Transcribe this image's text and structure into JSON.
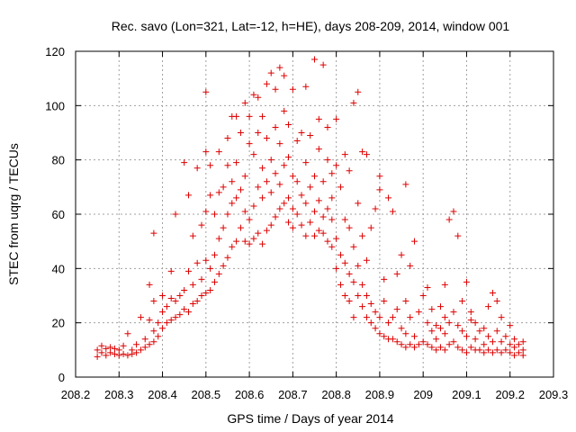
{
  "chart_data": {
    "type": "scatter",
    "title": "Rec. savo (Lon=321, Lat=-12, h=HE), days 208-209, 2014, window 001",
    "xlabel": "GPS time / Days of year 2014",
    "ylabel": "STEC from uqrg / TECUs",
    "xlim": [
      208.2,
      209.3
    ],
    "ylim": [
      0,
      120
    ],
    "xticks": [
      "208.2",
      "208.3",
      "208.4",
      "208.5",
      "208.6",
      "208.7",
      "208.8",
      "208.9",
      "209",
      "209.1",
      "209.2",
      "209.3"
    ],
    "yticks": [
      "0",
      "20",
      "40",
      "60",
      "80",
      "100",
      "120"
    ],
    "grid": true,
    "marker": "+",
    "color": "#dd0000",
    "points": [
      [
        208.25,
        7.5
      ],
      [
        208.25,
        10
      ],
      [
        208.26,
        9
      ],
      [
        208.26,
        11.5
      ],
      [
        208.27,
        8
      ],
      [
        208.27,
        10.5
      ],
      [
        208.28,
        9
      ],
      [
        208.28,
        11
      ],
      [
        208.29,
        8.5
      ],
      [
        208.29,
        10.5
      ],
      [
        208.3,
        8
      ],
      [
        208.3,
        10
      ],
      [
        208.31,
        8.5
      ],
      [
        208.31,
        11.5
      ],
      [
        208.32,
        8
      ],
      [
        208.32,
        16
      ],
      [
        208.33,
        8.5
      ],
      [
        208.33,
        10
      ],
      [
        208.34,
        9
      ],
      [
        208.34,
        12
      ],
      [
        208.35,
        10
      ],
      [
        208.35,
        22
      ],
      [
        208.36,
        11
      ],
      [
        208.36,
        14
      ],
      [
        208.37,
        12
      ],
      [
        208.37,
        21
      ],
      [
        208.37,
        34
      ],
      [
        208.38,
        13
      ],
      [
        208.38,
        17
      ],
      [
        208.38,
        28
      ],
      [
        208.38,
        53
      ],
      [
        208.39,
        15
      ],
      [
        208.39,
        20
      ],
      [
        208.4,
        18
      ],
      [
        208.4,
        24
      ],
      [
        208.4,
        30
      ],
      [
        208.41,
        20
      ],
      [
        208.41,
        26
      ],
      [
        208.42,
        21
      ],
      [
        208.42,
        39
      ],
      [
        208.42,
        29
      ],
      [
        208.43,
        22
      ],
      [
        208.43,
        28
      ],
      [
        208.43,
        60
      ],
      [
        208.44,
        23
      ],
      [
        208.44,
        30
      ],
      [
        208.45,
        25
      ],
      [
        208.45,
        32
      ],
      [
        208.45,
        79
      ],
      [
        208.46,
        24
      ],
      [
        208.46,
        67
      ],
      [
        208.46,
        39
      ],
      [
        208.47,
        27
      ],
      [
        208.47,
        34
      ],
      [
        208.47,
        52
      ],
      [
        208.48,
        28
      ],
      [
        208.48,
        42
      ],
      [
        208.48,
        77
      ],
      [
        208.49,
        30
      ],
      [
        208.49,
        36
      ],
      [
        208.49,
        56
      ],
      [
        208.5,
        31
      ],
      [
        208.5,
        43
      ],
      [
        208.5,
        61
      ],
      [
        208.5,
        83
      ],
      [
        208.5,
        105
      ],
      [
        208.51,
        32
      ],
      [
        208.51,
        40
      ],
      [
        208.51,
        67
      ],
      [
        208.51,
        78
      ],
      [
        208.52,
        35
      ],
      [
        208.52,
        45
      ],
      [
        208.52,
        60
      ],
      [
        208.53,
        38
      ],
      [
        208.53,
        51
      ],
      [
        208.53,
        68
      ],
      [
        208.53,
        83
      ],
      [
        208.54,
        41
      ],
      [
        208.54,
        55
      ],
      [
        208.54,
        70
      ],
      [
        208.55,
        44
      ],
      [
        208.55,
        60
      ],
      [
        208.55,
        78
      ],
      [
        208.55,
        88
      ],
      [
        208.56,
        48
      ],
      [
        208.56,
        64
      ],
      [
        208.56,
        72
      ],
      [
        208.56,
        96
      ],
      [
        208.57,
        50
      ],
      [
        208.57,
        66
      ],
      [
        208.57,
        79
      ],
      [
        208.57,
        96
      ],
      [
        208.58,
        55
      ],
      [
        208.58,
        69
      ],
      [
        208.58,
        90
      ],
      [
        208.59,
        50
      ],
      [
        208.59,
        61
      ],
      [
        208.59,
        74
      ],
      [
        208.59,
        101
      ],
      [
        208.6,
        49
      ],
      [
        208.6,
        58
      ],
      [
        208.6,
        86
      ],
      [
        208.6,
        96
      ],
      [
        208.61,
        51
      ],
      [
        208.61,
        63
      ],
      [
        208.61,
        82
      ],
      [
        208.61,
        104
      ],
      [
        208.62,
        53
      ],
      [
        208.62,
        70
      ],
      [
        208.62,
        90
      ],
      [
        208.62,
        103
      ],
      [
        208.63,
        49
      ],
      [
        208.63,
        66
      ],
      [
        208.63,
        77
      ],
      [
        208.63,
        96
      ],
      [
        208.64,
        54
      ],
      [
        208.64,
        72
      ],
      [
        208.64,
        88
      ],
      [
        208.64,
        108
      ],
      [
        208.65,
        56
      ],
      [
        208.65,
        68
      ],
      [
        208.65,
        80
      ],
      [
        208.65,
        112
      ],
      [
        208.66,
        59
      ],
      [
        208.66,
        75
      ],
      [
        208.66,
        92
      ],
      [
        208.66,
        106
      ],
      [
        208.67,
        62
      ],
      [
        208.67,
        71
      ],
      [
        208.67,
        86
      ],
      [
        208.67,
        114
      ],
      [
        208.68,
        64
      ],
      [
        208.68,
        78
      ],
      [
        208.68,
        98
      ],
      [
        208.68,
        111
      ],
      [
        208.69,
        57
      ],
      [
        208.69,
        66
      ],
      [
        208.69,
        81
      ],
      [
        208.69,
        93
      ],
      [
        208.7,
        55
      ],
      [
        208.7,
        62
      ],
      [
        208.7,
        74
      ],
      [
        208.7,
        106
      ],
      [
        208.71,
        60
      ],
      [
        208.71,
        72
      ],
      [
        208.71,
        87
      ],
      [
        208.72,
        56
      ],
      [
        208.72,
        67
      ],
      [
        208.72,
        90
      ],
      [
        208.73,
        52
      ],
      [
        208.73,
        64
      ],
      [
        208.73,
        79
      ],
      [
        208.73,
        107
      ],
      [
        208.74,
        57
      ],
      [
        208.74,
        70
      ],
      [
        208.74,
        89
      ],
      [
        208.75,
        52
      ],
      [
        208.75,
        61
      ],
      [
        208.75,
        74
      ],
      [
        208.75,
        117
      ],
      [
        208.76,
        54
      ],
      [
        208.76,
        65
      ],
      [
        208.76,
        84
      ],
      [
        208.76,
        95
      ],
      [
        208.77,
        53
      ],
      [
        208.77,
        59
      ],
      [
        208.77,
        72
      ],
      [
        208.77,
        115
      ],
      [
        208.78,
        50
      ],
      [
        208.78,
        62
      ],
      [
        208.78,
        80
      ],
      [
        208.78,
        92
      ],
      [
        208.79,
        48
      ],
      [
        208.79,
        58
      ],
      [
        208.79,
        66
      ],
      [
        208.79,
        75
      ],
      [
        208.8,
        40
      ],
      [
        208.8,
        51
      ],
      [
        208.8,
        78
      ],
      [
        208.8,
        95
      ],
      [
        208.81,
        34
      ],
      [
        208.81,
        45
      ],
      [
        208.81,
        70
      ],
      [
        208.82,
        30
      ],
      [
        208.82,
        42
      ],
      [
        208.82,
        58
      ],
      [
        208.82,
        82
      ],
      [
        208.83,
        28
      ],
      [
        208.83,
        38
      ],
      [
        208.83,
        55
      ],
      [
        208.83,
        76
      ],
      [
        208.84,
        22
      ],
      [
        208.84,
        35
      ],
      [
        208.84,
        48
      ],
      [
        208.84,
        101
      ],
      [
        208.85,
        30
      ],
      [
        208.85,
        41
      ],
      [
        208.85,
        64
      ],
      [
        208.85,
        105
      ],
      [
        208.86,
        26
      ],
      [
        208.86,
        34
      ],
      [
        208.86,
        52
      ],
      [
        208.86,
        83
      ],
      [
        208.87,
        22
      ],
      [
        208.87,
        30
      ],
      [
        208.87,
        43
      ],
      [
        208.87,
        82
      ],
      [
        208.88,
        20
      ],
      [
        208.88,
        27
      ],
      [
        208.88,
        55
      ],
      [
        208.89,
        18
      ],
      [
        208.89,
        24
      ],
      [
        208.89,
        62
      ],
      [
        208.9,
        16
      ],
      [
        208.9,
        22
      ],
      [
        208.9,
        74
      ],
      [
        208.9,
        69
      ],
      [
        208.91,
        15
      ],
      [
        208.91,
        28
      ],
      [
        208.91,
        36
      ],
      [
        208.92,
        14
      ],
      [
        208.92,
        20
      ],
      [
        208.92,
        66
      ],
      [
        208.93,
        14
      ],
      [
        208.93,
        22
      ],
      [
        208.93,
        61
      ],
      [
        208.94,
        13
      ],
      [
        208.94,
        25
      ],
      [
        208.94,
        38
      ],
      [
        208.95,
        12
      ],
      [
        208.95,
        18
      ],
      [
        208.95,
        45
      ],
      [
        208.96,
        11
      ],
      [
        208.96,
        16
      ],
      [
        208.96,
        28
      ],
      [
        208.96,
        71
      ],
      [
        208.97,
        12
      ],
      [
        208.97,
        22
      ],
      [
        208.97,
        41
      ],
      [
        208.98,
        11
      ],
      [
        208.98,
        15
      ],
      [
        208.98,
        50
      ],
      [
        208.99,
        12
      ],
      [
        208.99,
        24
      ],
      [
        209.0,
        13
      ],
      [
        209.0,
        30
      ],
      [
        209.01,
        12
      ],
      [
        209.01,
        20
      ],
      [
        209.01,
        33
      ],
      [
        209.02,
        11
      ],
      [
        209.02,
        17
      ],
      [
        209.02,
        25
      ],
      [
        209.03,
        10
      ],
      [
        209.03,
        14
      ],
      [
        209.03,
        19
      ],
      [
        209.04,
        11
      ],
      [
        209.04,
        18
      ],
      [
        209.04,
        26
      ],
      [
        209.05,
        10
      ],
      [
        209.05,
        16
      ],
      [
        209.05,
        22
      ],
      [
        209.05,
        34
      ],
      [
        209.06,
        12
      ],
      [
        209.06,
        20
      ],
      [
        209.06,
        58
      ],
      [
        209.07,
        13
      ],
      [
        209.07,
        24
      ],
      [
        209.07,
        61
      ],
      [
        209.08,
        11
      ],
      [
        209.08,
        19
      ],
      [
        209.08,
        52
      ],
      [
        209.09,
        10
      ],
      [
        209.09,
        17
      ],
      [
        209.09,
        28
      ],
      [
        209.1,
        9
      ],
      [
        209.1,
        15
      ],
      [
        209.1,
        35
      ],
      [
        209.11,
        11
      ],
      [
        209.11,
        21
      ],
      [
        209.11,
        24
      ],
      [
        209.12,
        10
      ],
      [
        209.12,
        14
      ],
      [
        209.12,
        20
      ],
      [
        209.13,
        10
      ],
      [
        209.13,
        17
      ],
      [
        209.14,
        9
      ],
      [
        209.14,
        12
      ],
      [
        209.14,
        18
      ],
      [
        209.15,
        10
      ],
      [
        209.15,
        15
      ],
      [
        209.15,
        26
      ],
      [
        209.16,
        9
      ],
      [
        209.16,
        13
      ],
      [
        209.16,
        31
      ],
      [
        209.17,
        10
      ],
      [
        209.17,
        17
      ],
      [
        209.17,
        28
      ],
      [
        209.18,
        9
      ],
      [
        209.18,
        13
      ],
      [
        209.18,
        22
      ],
      [
        209.19,
        10
      ],
      [
        209.19,
        15
      ],
      [
        209.2,
        9
      ],
      [
        209.2,
        12
      ],
      [
        209.2,
        19
      ],
      [
        209.21,
        8
      ],
      [
        209.21,
        11
      ],
      [
        209.21,
        14
      ],
      [
        209.22,
        9
      ],
      [
        209.22,
        12
      ],
      [
        209.23,
        8
      ],
      [
        209.23,
        10
      ],
      [
        209.23,
        13
      ]
    ]
  }
}
